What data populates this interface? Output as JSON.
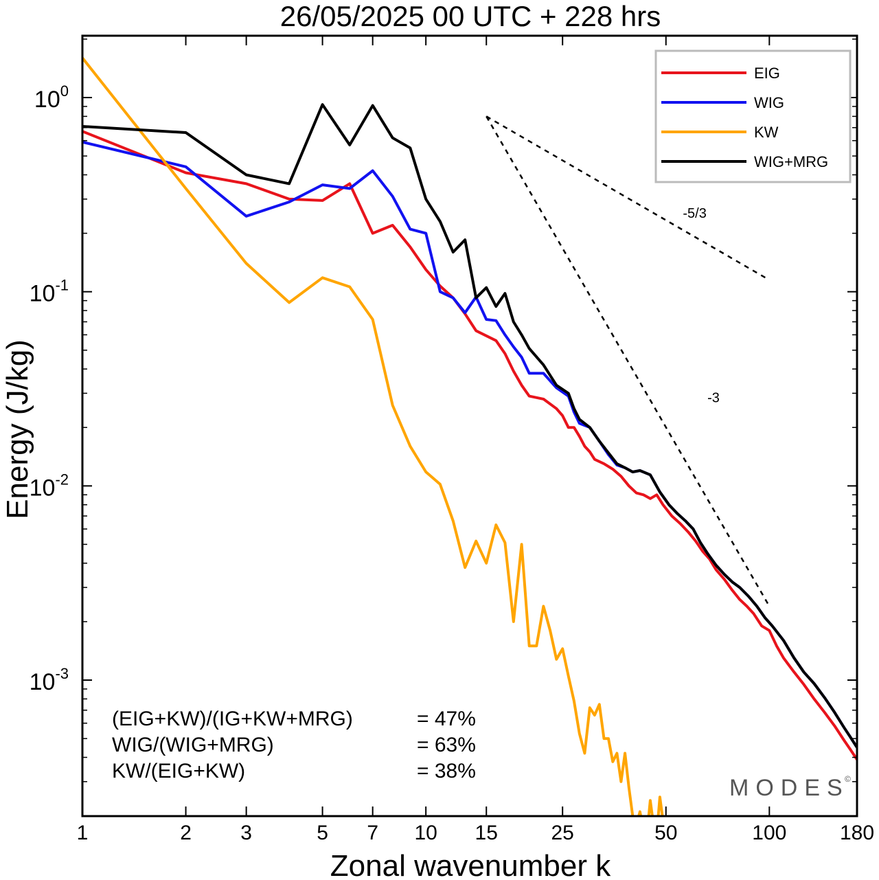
{
  "chart_data": {
    "type": "line",
    "title": "26/05/2025  00 UTC  + 228 hrs",
    "xlabel": "Zonal wavenumber k",
    "ylabel": "Energy (J/kg)",
    "xscale": "log",
    "yscale": "log",
    "xlim": [
      1,
      180
    ],
    "ylim": [
      0.0002,
      2
    ],
    "xticks": [
      1,
      2,
      3,
      5,
      7,
      10,
      15,
      25,
      50,
      100,
      180
    ],
    "xtick_labels": [
      "1",
      "2",
      "3",
      "5",
      "7",
      "10",
      "15",
      "25",
      "50",
      "100",
      "180"
    ],
    "yticks": [
      {
        "value": 1,
        "base": "10",
        "exp": "0"
      },
      {
        "value": 0.1,
        "base": "10",
        "exp": "-1"
      },
      {
        "value": 0.01,
        "base": "10",
        "exp": "-2"
      },
      {
        "value": 0.001,
        "base": "10",
        "exp": "-3"
      }
    ],
    "legend_position": "top-right",
    "series": [
      {
        "name": "EIG",
        "color": "#e8141c",
        "points": [
          [
            1,
            0.67
          ],
          [
            2,
            0.41
          ],
          [
            3,
            0.36
          ],
          [
            4,
            0.3
          ],
          [
            5,
            0.295
          ],
          [
            6,
            0.36
          ],
          [
            7,
            0.2
          ],
          [
            8,
            0.22
          ],
          [
            9,
            0.17
          ],
          [
            10,
            0.13
          ],
          [
            11,
            0.107
          ],
          [
            12,
            0.093
          ],
          [
            13,
            0.077
          ],
          [
            14,
            0.063
          ],
          [
            16,
            0.056
          ],
          [
            17,
            0.048
          ],
          [
            18,
            0.039
          ],
          [
            19,
            0.033
          ],
          [
            20,
            0.029
          ],
          [
            22,
            0.028
          ],
          [
            24,
            0.025
          ],
          [
            25,
            0.023
          ],
          [
            26,
            0.02
          ],
          [
            27,
            0.02
          ],
          [
            28,
            0.018
          ],
          [
            29,
            0.016
          ],
          [
            30,
            0.015
          ],
          [
            31,
            0.0137
          ],
          [
            33,
            0.013
          ],
          [
            35,
            0.0122
          ],
          [
            37,
            0.0112
          ],
          [
            39,
            0.01
          ],
          [
            41,
            0.0092
          ],
          [
            43,
            0.009
          ],
          [
            45,
            0.0086
          ],
          [
            47,
            0.009
          ],
          [
            49,
            0.008
          ],
          [
            52,
            0.007
          ],
          [
            55,
            0.0064
          ],
          [
            58,
            0.0058
          ],
          [
            61,
            0.0052
          ],
          [
            64,
            0.0046
          ],
          [
            67,
            0.0042
          ],
          [
            70,
            0.0037
          ],
          [
            74,
            0.0033
          ],
          [
            78,
            0.0029
          ],
          [
            82,
            0.0026
          ],
          [
            86,
            0.0024
          ],
          [
            90,
            0.0022
          ],
          [
            95,
            0.0019
          ],
          [
            100,
            0.0018
          ],
          [
            105,
            0.0015
          ],
          [
            110,
            0.0013
          ],
          [
            118,
            0.0011
          ],
          [
            126,
            0.00095
          ],
          [
            135,
            0.0008
          ],
          [
            145,
            0.00068
          ],
          [
            155,
            0.00058
          ],
          [
            165,
            0.00049
          ],
          [
            172,
            0.00044
          ],
          [
            180,
            0.00039
          ]
        ]
      },
      {
        "name": "WIG",
        "color": "#1212f0",
        "points": [
          [
            1,
            0.59
          ],
          [
            2,
            0.44
          ],
          [
            3,
            0.245
          ],
          [
            4,
            0.29
          ],
          [
            5,
            0.355
          ],
          [
            6,
            0.34
          ],
          [
            7,
            0.42
          ],
          [
            8,
            0.31
          ],
          [
            9,
            0.21
          ],
          [
            10,
            0.2
          ],
          [
            11,
            0.1
          ],
          [
            12,
            0.093
          ],
          [
            13,
            0.078
          ],
          [
            14,
            0.094
          ],
          [
            15,
            0.072
          ],
          [
            16,
            0.071
          ],
          [
            17,
            0.06
          ],
          [
            18,
            0.052
          ],
          [
            19,
            0.046
          ],
          [
            20,
            0.038
          ],
          [
            22,
            0.038
          ],
          [
            24,
            0.032
          ],
          [
            26,
            0.029
          ],
          [
            27,
            0.024
          ],
          [
            28,
            0.021
          ],
          [
            30,
            0.02
          ],
          [
            32,
            0.017
          ],
          [
            34,
            0.0145
          ],
          [
            36,
            0.0128
          ],
          [
            38,
            0.0124
          ],
          [
            40,
            0.0118
          ],
          [
            42,
            0.012
          ],
          [
            45,
            0.0114
          ],
          [
            48,
            0.0093
          ],
          [
            51,
            0.008
          ],
          [
            54,
            0.0072
          ],
          [
            57,
            0.0066
          ],
          [
            60,
            0.006
          ],
          [
            63,
            0.0051
          ],
          [
            66,
            0.0045
          ],
          [
            70,
            0.0039
          ],
          [
            74,
            0.0035
          ],
          [
            78,
            0.0032
          ],
          [
            82,
            0.003
          ],
          [
            87,
            0.0027
          ],
          [
            92,
            0.0024
          ],
          [
            97,
            0.0021
          ],
          [
            102,
            0.0019
          ],
          [
            110,
            0.0016
          ],
          [
            118,
            0.0013
          ],
          [
            126,
            0.0011
          ],
          [
            135,
            0.00096
          ],
          [
            145,
            0.00081
          ],
          [
            155,
            0.00068
          ],
          [
            165,
            0.00057
          ],
          [
            172,
            0.00051
          ],
          [
            180,
            0.00045
          ]
        ]
      },
      {
        "name": "KW",
        "color": "#ffa500",
        "points": [
          [
            1,
            1.6
          ],
          [
            2,
            0.34
          ],
          [
            3,
            0.14
          ],
          [
            4,
            0.088
          ],
          [
            5,
            0.118
          ],
          [
            6,
            0.106
          ],
          [
            7,
            0.072
          ],
          [
            8,
            0.026
          ],
          [
            9,
            0.016
          ],
          [
            10,
            0.0118
          ],
          [
            11,
            0.0102
          ],
          [
            12,
            0.0066
          ],
          [
            13,
            0.0038
          ],
          [
            14,
            0.0052
          ],
          [
            15,
            0.004
          ],
          [
            16,
            0.0063
          ],
          [
            17,
            0.0051
          ],
          [
            18,
            0.002
          ],
          [
            19,
            0.005
          ],
          [
            20,
            0.0015
          ],
          [
            21,
            0.0015
          ],
          [
            22,
            0.0024
          ],
          [
            23,
            0.0018
          ],
          [
            24,
            0.00128
          ],
          [
            25,
            0.00145
          ],
          [
            26,
            0.00105
          ],
          [
            27,
            0.00078
          ],
          [
            28,
            0.00053
          ],
          [
            29,
            0.00042
          ],
          [
            30,
            0.00072
          ],
          [
            31,
            0.00066
          ],
          [
            32,
            0.00075
          ],
          [
            33,
            0.0005
          ],
          [
            34,
            0.0005
          ],
          [
            35,
            0.00038
          ],
          [
            36,
            0.00042
          ],
          [
            37,
            0.0003
          ],
          [
            38,
            0.00042
          ],
          [
            39,
            0.00028
          ],
          [
            40,
            0.0002
          ],
          [
            41,
            0.00018
          ],
          [
            42,
            0.00021
          ],
          [
            43,
            0.00017
          ],
          [
            44,
            0.00016
          ],
          [
            45,
            0.00024
          ],
          [
            46,
            0.00018
          ],
          [
            47,
            0.00016
          ],
          [
            48,
            0.00025
          ],
          [
            49,
            0.00019
          ],
          [
            50,
            0.00017
          ]
        ]
      },
      {
        "name": "WIG+MRG",
        "color": "#000000",
        "points": [
          [
            1,
            0.71
          ],
          [
            2,
            0.66
          ],
          [
            3,
            0.4
          ],
          [
            4,
            0.36
          ],
          [
            5,
            0.92
          ],
          [
            6,
            0.57
          ],
          [
            7,
            0.91
          ],
          [
            8,
            0.62
          ],
          [
            9,
            0.55
          ],
          [
            10,
            0.3
          ],
          [
            11,
            0.23
          ],
          [
            12,
            0.16
          ],
          [
            13,
            0.185
          ],
          [
            14,
            0.093
          ],
          [
            15,
            0.105
          ],
          [
            16,
            0.084
          ],
          [
            17,
            0.098
          ],
          [
            18,
            0.07
          ],
          [
            19,
            0.06
          ],
          [
            20,
            0.051
          ],
          [
            22,
            0.042
          ],
          [
            24,
            0.033
          ],
          [
            26,
            0.03
          ],
          [
            27,
            0.025
          ],
          [
            28,
            0.022
          ],
          [
            30,
            0.02
          ],
          [
            32,
            0.017
          ],
          [
            34,
            0.0148
          ],
          [
            36,
            0.013
          ],
          [
            38,
            0.0124
          ],
          [
            40,
            0.0118
          ],
          [
            42,
            0.012
          ],
          [
            45,
            0.0114
          ],
          [
            48,
            0.0093
          ],
          [
            51,
            0.008
          ],
          [
            54,
            0.0072
          ],
          [
            57,
            0.0066
          ],
          [
            60,
            0.006
          ],
          [
            63,
            0.0051
          ],
          [
            66,
            0.0045
          ],
          [
            70,
            0.0039
          ],
          [
            74,
            0.0035
          ],
          [
            78,
            0.0032
          ],
          [
            82,
            0.003
          ],
          [
            87,
            0.0027
          ],
          [
            92,
            0.0024
          ],
          [
            97,
            0.0021
          ],
          [
            102,
            0.0019
          ],
          [
            110,
            0.0016
          ],
          [
            118,
            0.0013
          ],
          [
            126,
            0.0011
          ],
          [
            135,
            0.00096
          ],
          [
            145,
            0.00081
          ],
          [
            155,
            0.00068
          ],
          [
            165,
            0.00057
          ],
          [
            172,
            0.00051
          ],
          [
            180,
            0.00045
          ]
        ]
      }
    ],
    "reference_lines": [
      {
        "label": "-5/3",
        "start": [
          15,
          0.8
        ],
        "end": [
          100,
          0.115
        ],
        "label_at": [
          56,
          0.24
        ]
      },
      {
        "label": "-3",
        "start": [
          15,
          0.8
        ],
        "end": [
          100,
          0.0024
        ],
        "label_at": [
          66,
          0.027
        ]
      }
    ],
    "stats": [
      {
        "label": "(EIG+KW)/(IG+KW+MRG)",
        "value": "= 47%"
      },
      {
        "label": "WIG/(WIG+MRG)",
        "value": "= 63%"
      },
      {
        "label": "KW/(EIG+KW)",
        "value": "= 38%"
      }
    ],
    "watermark": "MODES"
  }
}
